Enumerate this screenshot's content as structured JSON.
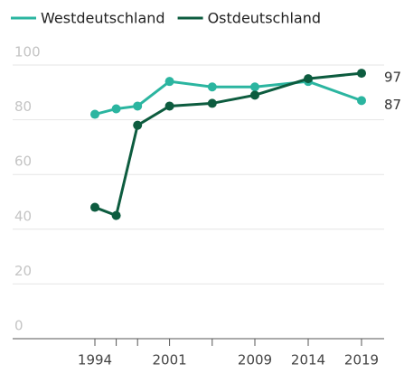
{
  "chart_data": {
    "type": "line",
    "x": [
      1994,
      1996,
      1998,
      2001,
      2005,
      2009,
      2014,
      2019
    ],
    "series": [
      {
        "name": "Westdeutschland",
        "color": "#2bb5a0",
        "values": [
          82,
          84,
          85,
          94,
          92,
          92,
          94,
          87
        ]
      },
      {
        "name": "Ostdeutschland",
        "color": "#0d5c3f",
        "values": [
          48,
          45,
          78,
          85,
          86,
          89,
          95,
          97
        ]
      }
    ],
    "xlim": [
      1990,
      2021
    ],
    "xticks": [
      1994,
      2001,
      2009,
      2014,
      2019
    ],
    "ylim": [
      0,
      100
    ],
    "yticks": [
      0,
      20,
      40,
      60,
      80,
      100
    ],
    "grid": true
  }
}
